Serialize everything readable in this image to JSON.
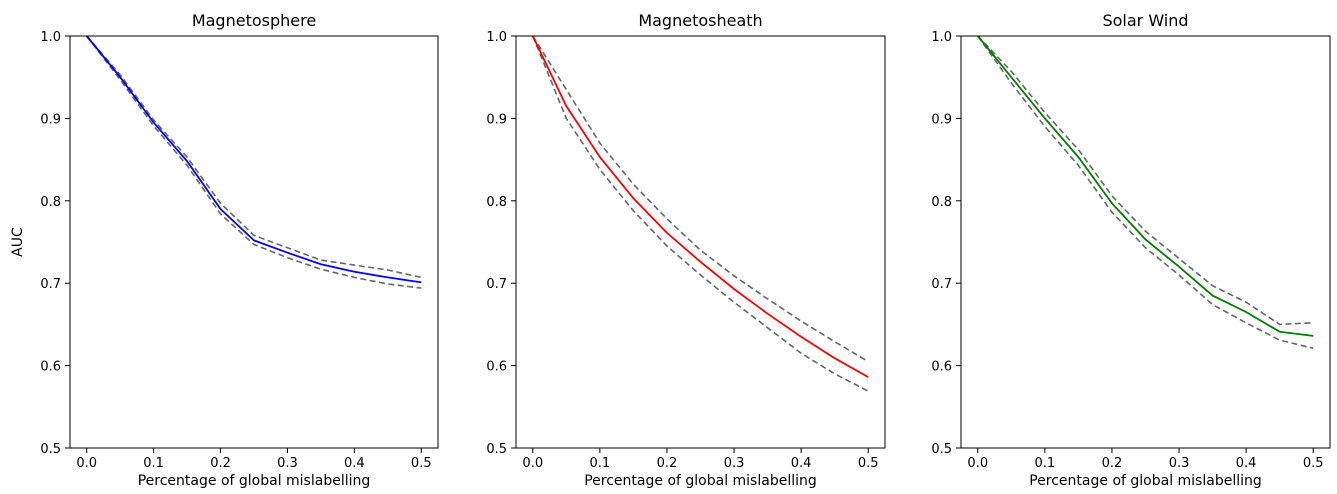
{
  "chart_data": [
    {
      "type": "line",
      "title": "Magnetosphere",
      "xlabel": "Percentage of global mislabelling",
      "ylabel": "AUC",
      "xlim": [
        -0.025,
        0.525
      ],
      "ylim": [
        0.5,
        1.0
      ],
      "x_ticks": [
        "0.0",
        "0.1",
        "0.2",
        "0.3",
        "0.4",
        "0.5"
      ],
      "y_ticks": [
        "0.5",
        "0.6",
        "0.7",
        "0.8",
        "0.9",
        "1.0"
      ],
      "grid": false,
      "x": [
        0.0,
        0.05,
        0.1,
        0.15,
        0.2,
        0.25,
        0.3,
        0.35,
        0.4,
        0.45,
        0.5
      ],
      "series": [
        {
          "role": "mean",
          "color": "#0000ff",
          "style": "solid",
          "values": [
            1.0,
            0.95,
            0.895,
            0.848,
            0.79,
            0.752,
            0.737,
            0.723,
            0.714,
            0.707,
            0.701
          ]
        },
        {
          "role": "upper",
          "color": "#666666",
          "style": "dashed",
          "values": [
            1.0,
            0.953,
            0.898,
            0.853,
            0.797,
            0.758,
            0.743,
            0.728,
            0.722,
            0.716,
            0.707
          ]
        },
        {
          "role": "lower",
          "color": "#666666",
          "style": "dashed",
          "values": [
            1.0,
            0.947,
            0.891,
            0.843,
            0.784,
            0.747,
            0.731,
            0.717,
            0.707,
            0.699,
            0.694
          ]
        }
      ]
    },
    {
      "type": "line",
      "title": "Magnetosheath",
      "xlabel": "Percentage of global mislabelling",
      "ylabel": "",
      "xlim": [
        -0.025,
        0.525
      ],
      "ylim": [
        0.5,
        1.0
      ],
      "x_ticks": [
        "0.0",
        "0.1",
        "0.2",
        "0.3",
        "0.4",
        "0.5"
      ],
      "y_ticks": [
        "0.5",
        "0.6",
        "0.7",
        "0.8",
        "0.9",
        "1.0"
      ],
      "grid": false,
      "x": [
        0.0,
        0.05,
        0.1,
        0.15,
        0.2,
        0.25,
        0.3,
        0.35,
        0.4,
        0.45,
        0.5
      ],
      "series": [
        {
          "role": "mean",
          "color": "#ff0000",
          "style": "solid",
          "values": [
            1.0,
            0.915,
            0.853,
            0.803,
            0.761,
            0.726,
            0.693,
            0.663,
            0.635,
            0.609,
            0.586
          ]
        },
        {
          "role": "upper",
          "color": "#666666",
          "style": "dashed",
          "values": [
            1.0,
            0.935,
            0.87,
            0.82,
            0.778,
            0.74,
            0.709,
            0.681,
            0.654,
            0.629,
            0.605
          ]
        },
        {
          "role": "lower",
          "color": "#666666",
          "style": "dashed",
          "values": [
            1.0,
            0.9,
            0.838,
            0.788,
            0.745,
            0.71,
            0.677,
            0.646,
            0.615,
            0.59,
            0.569
          ]
        }
      ]
    },
    {
      "type": "line",
      "title": "Solar Wind",
      "xlabel": "Percentage of global mislabelling",
      "ylabel": "",
      "xlim": [
        -0.025,
        0.525
      ],
      "ylim": [
        0.5,
        1.0
      ],
      "x_ticks": [
        "0.0",
        "0.1",
        "0.2",
        "0.3",
        "0.4",
        "0.5"
      ],
      "y_ticks": [
        "0.5",
        "0.6",
        "0.7",
        "0.8",
        "0.9",
        "1.0"
      ],
      "grid": false,
      "x": [
        0.0,
        0.05,
        0.1,
        0.15,
        0.2,
        0.25,
        0.3,
        0.35,
        0.4,
        0.45,
        0.5
      ],
      "series": [
        {
          "role": "mean",
          "color": "#008000",
          "style": "solid",
          "values": [
            1.0,
            0.95,
            0.9,
            0.853,
            0.797,
            0.753,
            0.72,
            0.685,
            0.665,
            0.641,
            0.636
          ]
        },
        {
          "role": "upper",
          "color": "#666666",
          "style": "dashed",
          "values": [
            1.0,
            0.957,
            0.907,
            0.862,
            0.806,
            0.763,
            0.73,
            0.697,
            0.677,
            0.65,
            0.652
          ]
        },
        {
          "role": "lower",
          "color": "#666666",
          "style": "dashed",
          "values": [
            1.0,
            0.943,
            0.89,
            0.843,
            0.786,
            0.743,
            0.71,
            0.674,
            0.652,
            0.631,
            0.621
          ]
        }
      ]
    }
  ]
}
